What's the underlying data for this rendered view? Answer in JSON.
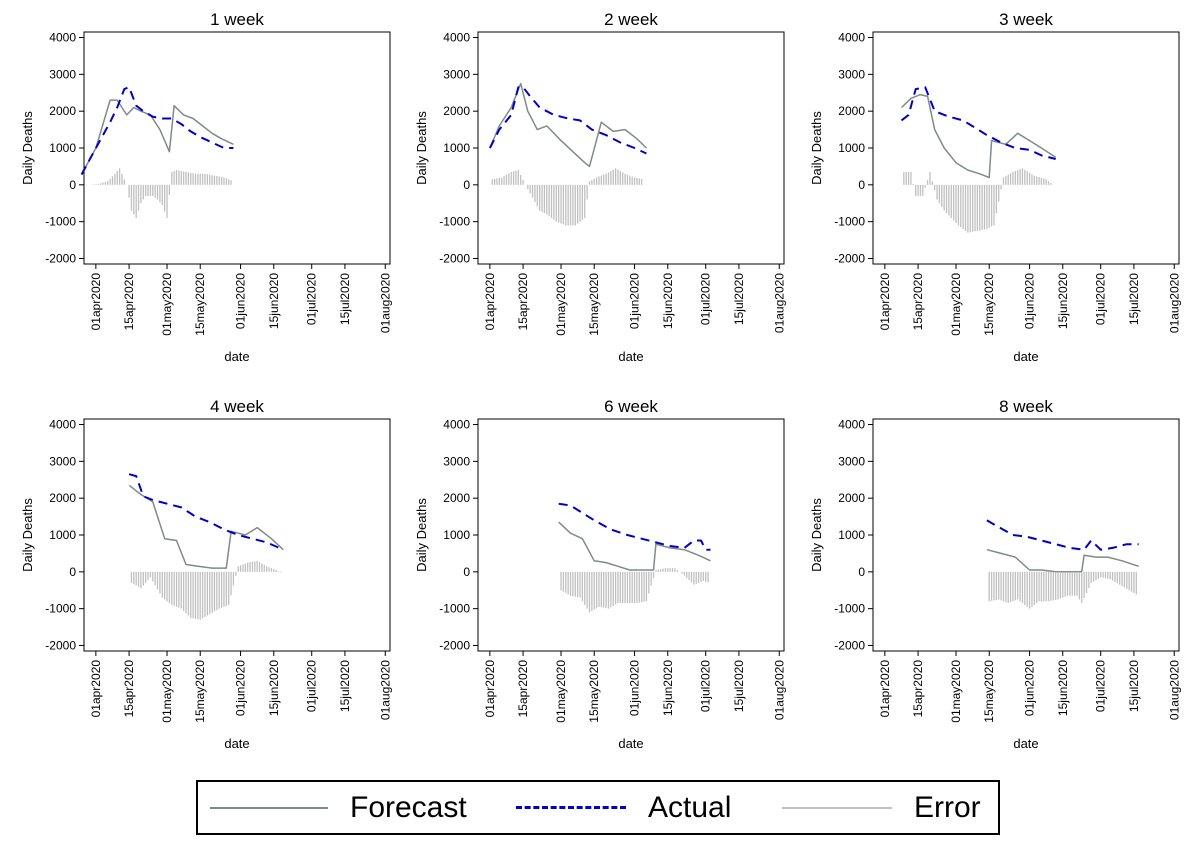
{
  "chart_data": [
    {
      "type": "line",
      "title": "1 week",
      "xlabel": "date",
      "ylabel": "Daily Deaths",
      "ylim": [
        -2000,
        4000
      ],
      "yticks": [
        4000,
        3000,
        2000,
        1000,
        0,
        -1000,
        -2000
      ],
      "xticks": [
        "01apr2020",
        "15apr2020",
        "01may2020",
        "15may2020",
        "01jun2020",
        "15jun2020",
        "01jul2020",
        "15jul2020",
        "01aug2020"
      ],
      "series": [
        {
          "name": "Forecast",
          "dates": [
            "2020-03-26",
            "2020-04-01",
            "2020-04-07",
            "2020-04-10",
            "2020-04-14",
            "2020-04-17",
            "2020-04-20",
            "2020-04-24",
            "2020-04-28",
            "2020-05-02",
            "2020-05-04",
            "2020-05-08",
            "2020-05-12",
            "2020-05-16",
            "2020-05-20",
            "2020-05-24",
            "2020-05-29"
          ],
          "values": [
            280,
            1000,
            2300,
            2300,
            1900,
            2100,
            2000,
            1900,
            1500,
            900,
            2150,
            1900,
            1800,
            1600,
            1400,
            1250,
            1100
          ]
        },
        {
          "name": "Actual",
          "dates": [
            "2020-03-26",
            "2020-04-01",
            "2020-04-07",
            "2020-04-10",
            "2020-04-13",
            "2020-04-15",
            "2020-04-18",
            "2020-04-21",
            "2020-04-25",
            "2020-04-29",
            "2020-05-03",
            "2020-05-07",
            "2020-05-11",
            "2020-05-15",
            "2020-05-20",
            "2020-05-25",
            "2020-05-29"
          ],
          "values": [
            280,
            1000,
            1700,
            2100,
            2600,
            2650,
            2150,
            2000,
            1850,
            1800,
            1800,
            1650,
            1450,
            1300,
            1150,
            1000,
            1000
          ]
        },
        {
          "name": "Error",
          "dates": [
            "2020-03-29",
            "2020-04-02",
            "2020-04-06",
            "2020-04-09",
            "2020-04-11",
            "2020-04-14",
            "2020-04-16",
            "2020-04-18",
            "2020-04-20",
            "2020-04-22",
            "2020-04-25",
            "2020-04-27",
            "2020-04-29",
            "2020-05-01",
            "2020-05-03",
            "2020-05-05",
            "2020-05-09",
            "2020-05-13",
            "2020-05-17",
            "2020-05-21",
            "2020-05-25",
            "2020-05-29"
          ],
          "values": [
            0,
            20,
            100,
            300,
            450,
            0,
            -700,
            -900,
            -500,
            -300,
            -300,
            -400,
            -550,
            -900,
            350,
            400,
            350,
            300,
            300,
            250,
            200,
            100
          ]
        }
      ]
    },
    {
      "type": "line",
      "title": "2 week",
      "xlabel": "date",
      "ylabel": "Daily Deaths",
      "ylim": [
        -2000,
        4000
      ],
      "yticks": [
        4000,
        3000,
        2000,
        1000,
        0,
        -1000,
        -2000
      ],
      "xticks": [
        "01apr2020",
        "15apr2020",
        "01may2020",
        "15may2020",
        "01jun2020",
        "15jun2020",
        "01jul2020",
        "15jul2020",
        "01aug2020"
      ],
      "series": [
        {
          "name": "Forecast",
          "dates": [
            "2020-04-01",
            "2020-04-05",
            "2020-04-10",
            "2020-04-14",
            "2020-04-17",
            "2020-04-21",
            "2020-04-25",
            "2020-05-01",
            "2020-05-06",
            "2020-05-11",
            "2020-05-13",
            "2020-05-18",
            "2020-05-23",
            "2020-05-28",
            "2020-06-02",
            "2020-06-06"
          ],
          "values": [
            1000,
            1600,
            2100,
            2750,
            2000,
            1500,
            1600,
            1200,
            900,
            600,
            500,
            1700,
            1450,
            1500,
            1250,
            1000
          ]
        },
        {
          "name": "Actual",
          "dates": [
            "2020-04-01",
            "2020-04-05",
            "2020-04-10",
            "2020-04-13",
            "2020-04-15",
            "2020-04-18",
            "2020-04-22",
            "2020-04-28",
            "2020-05-04",
            "2020-05-09",
            "2020-05-14",
            "2020-05-20",
            "2020-05-26",
            "2020-06-01",
            "2020-06-06"
          ],
          "values": [
            1000,
            1500,
            1900,
            2650,
            2650,
            2400,
            2100,
            1900,
            1800,
            1750,
            1500,
            1350,
            1150,
            1000,
            850
          ]
        },
        {
          "name": "Error",
          "dates": [
            "2020-04-02",
            "2020-04-06",
            "2020-04-10",
            "2020-04-13",
            "2020-04-16",
            "2020-04-19",
            "2020-04-22",
            "2020-04-25",
            "2020-04-29",
            "2020-05-03",
            "2020-05-07",
            "2020-05-11",
            "2020-05-13",
            "2020-05-16",
            "2020-05-20",
            "2020-05-24",
            "2020-05-28",
            "2020-06-01",
            "2020-06-05"
          ],
          "values": [
            150,
            200,
            350,
            400,
            0,
            -350,
            -700,
            -800,
            -1000,
            -1100,
            -1100,
            -900,
            100,
            200,
            300,
            450,
            300,
            200,
            150
          ]
        }
      ]
    },
    {
      "type": "line",
      "title": "3 week",
      "xlabel": "date",
      "ylabel": "Daily Deaths",
      "ylim": [
        -2000,
        4000
      ],
      "yticks": [
        4000,
        3000,
        2000,
        1000,
        0,
        -1000,
        -2000
      ],
      "xticks": [
        "01apr2020",
        "15apr2020",
        "01may2020",
        "15may2020",
        "01jun2020",
        "15jun2020",
        "01jul2020",
        "15jul2020",
        "01aug2020"
      ],
      "series": [
        {
          "name": "Forecast",
          "dates": [
            "2020-04-08",
            "2020-04-12",
            "2020-04-16",
            "2020-04-19",
            "2020-04-22",
            "2020-04-26",
            "2020-05-01",
            "2020-05-06",
            "2020-05-11",
            "2020-05-15",
            "2020-05-16",
            "2020-05-22",
            "2020-05-27",
            "2020-06-01",
            "2020-06-06",
            "2020-06-12"
          ],
          "values": [
            2100,
            2350,
            2450,
            2400,
            1500,
            1000,
            600,
            400,
            300,
            200,
            1200,
            1100,
            1400,
            1200,
            1000,
            750
          ]
        },
        {
          "name": "Actual",
          "dates": [
            "2020-04-08",
            "2020-04-11",
            "2020-04-14",
            "2020-04-18",
            "2020-04-22",
            "2020-04-28",
            "2020-05-04",
            "2020-05-09",
            "2020-05-14",
            "2020-05-20",
            "2020-05-26",
            "2020-06-01",
            "2020-06-06",
            "2020-06-12"
          ],
          "values": [
            1750,
            1900,
            2600,
            2650,
            2000,
            1850,
            1750,
            1550,
            1350,
            1150,
            1000,
            950,
            800,
            700
          ]
        },
        {
          "name": "Error",
          "dates": [
            "2020-04-09",
            "2020-04-12",
            "2020-04-14",
            "2020-04-17",
            "2020-04-20",
            "2020-04-23",
            "2020-04-26",
            "2020-04-29",
            "2020-05-02",
            "2020-05-06",
            "2020-05-10",
            "2020-05-14",
            "2020-05-17",
            "2020-05-21",
            "2020-05-25",
            "2020-05-29",
            "2020-06-03",
            "2020-06-08",
            "2020-06-12"
          ],
          "values": [
            350,
            350,
            -300,
            -300,
            350,
            -400,
            -700,
            -900,
            -1100,
            -1300,
            -1250,
            -1200,
            -1100,
            200,
            350,
            450,
            250,
            150,
            -50
          ]
        }
      ]
    },
    {
      "type": "line",
      "title": "4 week",
      "xlabel": "date",
      "ylabel": "Daily Deaths",
      "ylim": [
        -2000,
        4000
      ],
      "yticks": [
        4000,
        3000,
        2000,
        1000,
        0,
        -1000,
        -2000
      ],
      "xticks": [
        "01apr2020",
        "15apr2020",
        "01may2020",
        "15may2020",
        "01jun2020",
        "15jun2020",
        "01jul2020",
        "15jul2020",
        "01aug2020"
      ],
      "series": [
        {
          "name": "Forecast",
          "dates": [
            "2020-04-15",
            "2020-04-20",
            "2020-04-25",
            "2020-04-30",
            "2020-05-05",
            "2020-05-09",
            "2020-05-14",
            "2020-05-20",
            "2020-05-26",
            "2020-05-28",
            "2020-06-03",
            "2020-06-08",
            "2020-06-14",
            "2020-06-19"
          ],
          "values": [
            2350,
            2100,
            1900,
            900,
            850,
            200,
            150,
            100,
            100,
            1100,
            1000,
            1200,
            900,
            600
          ]
        },
        {
          "name": "Actual",
          "dates": [
            "2020-04-15",
            "2020-04-18",
            "2020-04-21",
            "2020-04-25",
            "2020-05-01",
            "2020-05-07",
            "2020-05-13",
            "2020-05-19",
            "2020-05-25",
            "2020-05-31",
            "2020-06-06",
            "2020-06-12",
            "2020-06-19"
          ],
          "values": [
            2650,
            2600,
            2050,
            1950,
            1850,
            1750,
            1500,
            1350,
            1150,
            1000,
            900,
            800,
            600
          ]
        },
        {
          "name": "Error",
          "dates": [
            "2020-04-16",
            "2020-04-20",
            "2020-04-24",
            "2020-04-29",
            "2020-05-03",
            "2020-05-07",
            "2020-05-11",
            "2020-05-15",
            "2020-05-19",
            "2020-05-23",
            "2020-05-27",
            "2020-05-31",
            "2020-06-04",
            "2020-06-08",
            "2020-06-12",
            "2020-06-16",
            "2020-06-19"
          ],
          "values": [
            -300,
            -450,
            -150,
            -700,
            -900,
            -1000,
            -1250,
            -1300,
            -1150,
            -1000,
            -900,
            150,
            250,
            300,
            150,
            50,
            -50
          ]
        }
      ]
    },
    {
      "type": "line",
      "title": "6 week",
      "xlabel": "date",
      "ylabel": "Daily Deaths",
      "ylim": [
        -2000,
        4000
      ],
      "yticks": [
        4000,
        3000,
        2000,
        1000,
        0,
        -1000,
        -2000
      ],
      "xticks": [
        "01apr2020",
        "15apr2020",
        "01may2020",
        "15may2020",
        "01jun2020",
        "15jun2020",
        "01jul2020",
        "15jul2020",
        "01aug2020"
      ],
      "series": [
        {
          "name": "Forecast",
          "dates": [
            "2020-04-30",
            "2020-05-05",
            "2020-05-10",
            "2020-05-15",
            "2020-05-20",
            "2020-05-25",
            "2020-05-30",
            "2020-06-04",
            "2020-06-09",
            "2020-06-10",
            "2020-06-16",
            "2020-06-22",
            "2020-06-28",
            "2020-07-03"
          ],
          "values": [
            1350,
            1050,
            900,
            300,
            250,
            150,
            50,
            50,
            50,
            750,
            650,
            600,
            450,
            300
          ]
        },
        {
          "name": "Actual",
          "dates": [
            "2020-04-30",
            "2020-05-05",
            "2020-05-10",
            "2020-05-15",
            "2020-05-22",
            "2020-05-29",
            "2020-06-04",
            "2020-06-10",
            "2020-06-16",
            "2020-06-22",
            "2020-06-26",
            "2020-06-29",
            "2020-07-01",
            "2020-07-03"
          ],
          "values": [
            1850,
            1800,
            1600,
            1400,
            1150,
            1000,
            900,
            800,
            700,
            650,
            850,
            850,
            600,
            600
          ]
        },
        {
          "name": "Error",
          "dates": [
            "2020-05-01",
            "2020-05-05",
            "2020-05-09",
            "2020-05-13",
            "2020-05-17",
            "2020-05-21",
            "2020-05-25",
            "2020-05-29",
            "2020-06-02",
            "2020-06-06",
            "2020-06-10",
            "2020-06-14",
            "2020-06-18",
            "2020-06-22",
            "2020-06-26",
            "2020-06-30",
            "2020-07-03"
          ],
          "values": [
            -500,
            -650,
            -700,
            -1100,
            -950,
            -1000,
            -850,
            -850,
            -850,
            -800,
            50,
            100,
            100,
            -100,
            -350,
            -250,
            -300
          ]
        }
      ]
    },
    {
      "type": "line",
      "title": "8 week",
      "xlabel": "date",
      "ylabel": "Daily Deaths",
      "ylim": [
        -2000,
        4000
      ],
      "yticks": [
        4000,
        3000,
        2000,
        1000,
        0,
        -1000,
        -2000
      ],
      "xticks": [
        "01apr2020",
        "15apr2020",
        "01may2020",
        "15may2020",
        "01jun2020",
        "15jun2020",
        "01jul2020",
        "15jul2020",
        "01aug2020"
      ],
      "series": [
        {
          "name": "Forecast",
          "dates": [
            "2020-05-14",
            "2020-05-20",
            "2020-05-26",
            "2020-06-01",
            "2020-06-06",
            "2020-06-12",
            "2020-06-18",
            "2020-06-23",
            "2020-06-24",
            "2020-06-29",
            "2020-07-04",
            "2020-07-10",
            "2020-07-17"
          ],
          "values": [
            600,
            500,
            400,
            50,
            50,
            0,
            0,
            0,
            450,
            400,
            400,
            300,
            150
          ]
        },
        {
          "name": "Actual",
          "dates": [
            "2020-05-14",
            "2020-05-18",
            "2020-05-25",
            "2020-05-31",
            "2020-06-06",
            "2020-06-12",
            "2020-06-18",
            "2020-06-24",
            "2020-06-27",
            "2020-07-01",
            "2020-07-06",
            "2020-07-12",
            "2020-07-17"
          ],
          "values": [
            1400,
            1250,
            1000,
            950,
            850,
            750,
            650,
            600,
            850,
            600,
            650,
            750,
            750
          ]
        },
        {
          "name": "Error",
          "dates": [
            "2020-05-15",
            "2020-05-19",
            "2020-05-23",
            "2020-05-27",
            "2020-06-01",
            "2020-06-05",
            "2020-06-09",
            "2020-06-13",
            "2020-06-17",
            "2020-06-21",
            "2020-06-23",
            "2020-06-27",
            "2020-07-01",
            "2020-07-05",
            "2020-07-09",
            "2020-07-13",
            "2020-07-17"
          ],
          "values": [
            -800,
            -750,
            -850,
            -750,
            -1000,
            -800,
            -800,
            -750,
            -650,
            -650,
            -850,
            -300,
            -150,
            -200,
            -350,
            -500,
            -650
          ]
        }
      ]
    }
  ],
  "legend": {
    "items": [
      {
        "label": "Forecast",
        "color": "#7f8a8a",
        "style": "solid"
      },
      {
        "label": "Actual",
        "color": "#0000cc",
        "style": "dashed"
      },
      {
        "label": "Error",
        "color": "#c0c0c0",
        "style": "solid"
      }
    ]
  }
}
